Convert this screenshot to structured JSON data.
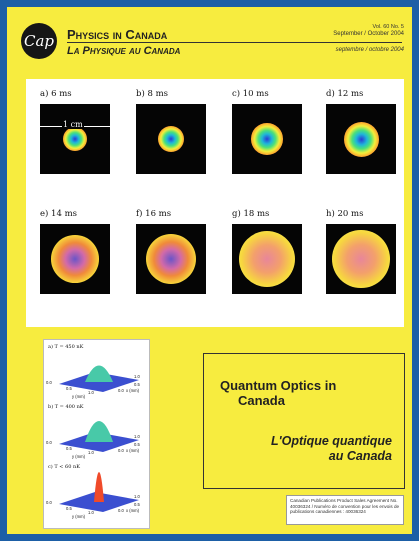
{
  "masthead": {
    "logo_text": "Cap",
    "title_en": "Physics in Canada",
    "title_fr": "La Physique au Canada",
    "volume": "Vol. 60  No. 5",
    "date_en": "September / October 2004",
    "date_fr": "septembre / octobre 2004"
  },
  "figure": {
    "scale_label": "1 cm",
    "frames": [
      {
        "label": "a) 6 ms",
        "cloud_size": 0.35
      },
      {
        "label": "b) 8 ms",
        "cloud_size": 0.38
      },
      {
        "label": "c) 10 ms",
        "cloud_size": 0.45
      },
      {
        "label": "d) 12 ms",
        "cloud_size": 0.5
      },
      {
        "label": "e) 14 ms",
        "cloud_size": 0.68
      },
      {
        "label": "f) 16 ms",
        "cloud_size": 0.72
      },
      {
        "label": "g) 18 ms",
        "cloud_size": 0.8
      },
      {
        "label": "h) 20 ms",
        "cloud_size": 0.82
      }
    ]
  },
  "plots": [
    {
      "label": "a) T = 450 nK"
    },
    {
      "label": "b) T = 400 nK"
    },
    {
      "label": "c) T < 60 nK"
    }
  ],
  "plot_axes": {
    "x": "y (mm)",
    "y": "x (mm)",
    "t0": "0.0",
    "t1": "0.5",
    "t2": "1.0"
  },
  "feature": {
    "title_en_1": "Quantum Optics in",
    "title_en_2": "Canada",
    "title_fr_1": "L'Optique quantique",
    "title_fr_2": "au Canada"
  },
  "agreement": "Canadian Publications Product Sales Agreement No. 40036324 / Numéro de convention pour les envois de publications canadiennes : 40036324",
  "colors": {
    "border": "#1d5fa6",
    "background": "#f7ec3f"
  }
}
